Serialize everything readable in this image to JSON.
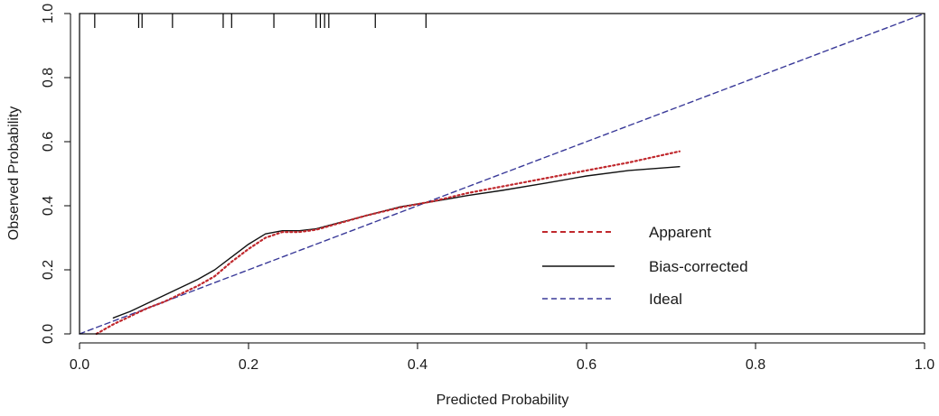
{
  "chart_data": {
    "type": "line",
    "title": "",
    "xlabel": "Predicted Probability",
    "ylabel": "Observed Probability",
    "xlim": [
      0,
      1
    ],
    "ylim": [
      0,
      1
    ],
    "xticks": [
      0.0,
      0.2,
      0.4,
      0.6,
      0.8,
      1.0
    ],
    "xtick_labels": [
      "0.0",
      "0.2",
      "0.4",
      "0.6",
      "0.8",
      "1.0"
    ],
    "yticks": [
      0.0,
      0.2,
      0.4,
      0.6,
      0.8,
      1.0
    ],
    "ytick_labels": [
      "0.0",
      "0.2",
      "0.4",
      "0.6",
      "0.8",
      "1.0"
    ],
    "grid": false,
    "legend_position": "bottom-right",
    "series": [
      {
        "name": "Apparent",
        "color": "#c0282d",
        "dash": "dotted",
        "x": [
          0.02,
          0.04,
          0.06,
          0.08,
          0.1,
          0.12,
          0.14,
          0.16,
          0.18,
          0.2,
          0.22,
          0.24,
          0.26,
          0.28,
          0.3,
          0.34,
          0.38,
          0.42,
          0.46,
          0.5,
          0.55,
          0.6,
          0.65,
          0.71
        ],
        "y": [
          0.0,
          0.03,
          0.055,
          0.08,
          0.1,
          0.125,
          0.15,
          0.18,
          0.225,
          0.265,
          0.3,
          0.318,
          0.318,
          0.325,
          0.34,
          0.37,
          0.395,
          0.415,
          0.44,
          0.46,
          0.485,
          0.51,
          0.535,
          0.57
        ]
      },
      {
        "name": "Bias-corrected",
        "color": "#111111",
        "dash": "solid",
        "x": [
          0.04,
          0.06,
          0.08,
          0.1,
          0.12,
          0.14,
          0.16,
          0.18,
          0.2,
          0.22,
          0.24,
          0.26,
          0.28,
          0.3,
          0.34,
          0.38,
          0.42,
          0.46,
          0.5,
          0.55,
          0.6,
          0.65,
          0.71
        ],
        "y": [
          0.05,
          0.07,
          0.095,
          0.12,
          0.145,
          0.17,
          0.2,
          0.24,
          0.28,
          0.312,
          0.322,
          0.322,
          0.328,
          0.342,
          0.37,
          0.397,
          0.414,
          0.432,
          0.448,
          0.47,
          0.493,
          0.51,
          0.522
        ]
      },
      {
        "name": "Ideal",
        "color": "#3a3a99",
        "dash": "dashed",
        "x": [
          0.0,
          1.0
        ],
        "y": [
          0.0,
          1.0
        ]
      }
    ],
    "rug": {
      "color": "#000000",
      "x": [
        0.018,
        0.07,
        0.074,
        0.11,
        0.17,
        0.18,
        0.23,
        0.28,
        0.285,
        0.29,
        0.295,
        0.35,
        0.41
      ]
    }
  }
}
